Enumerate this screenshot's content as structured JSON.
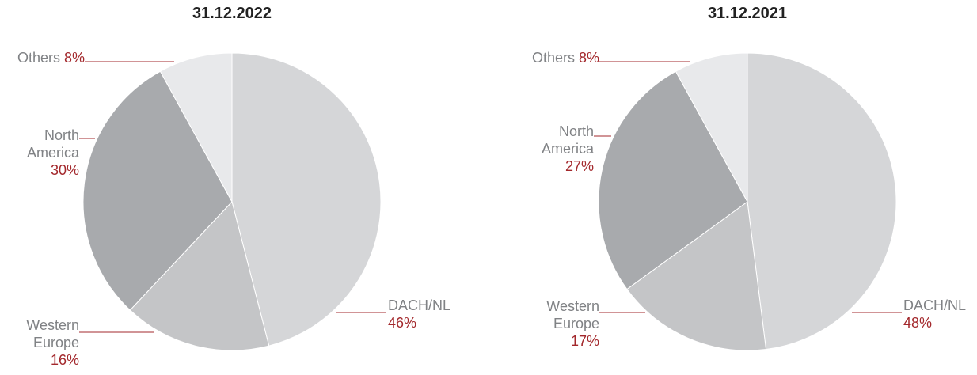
{
  "chart_data": [
    {
      "type": "pie",
      "title": "31.12.2022",
      "categories": [
        "DACH/NL",
        "Western Europe",
        "North America",
        "Others"
      ],
      "values": [
        46,
        16,
        30,
        8
      ],
      "value_labels": [
        "46%",
        "16%",
        "30%",
        "8%"
      ],
      "colors": [
        "#d5d6d8",
        "#c4c5c7",
        "#a8aaad",
        "#e8e9eb"
      ]
    },
    {
      "type": "pie",
      "title": "31.12.2021",
      "categories": [
        "DACH/NL",
        "Western Europe",
        "North America",
        "Others"
      ],
      "values": [
        48,
        17,
        27,
        8
      ],
      "value_labels": [
        "48%",
        "17%",
        "27%",
        "8%"
      ],
      "colors": [
        "#d5d6d8",
        "#c4c5c7",
        "#a8aaad",
        "#e8e9eb"
      ]
    }
  ]
}
